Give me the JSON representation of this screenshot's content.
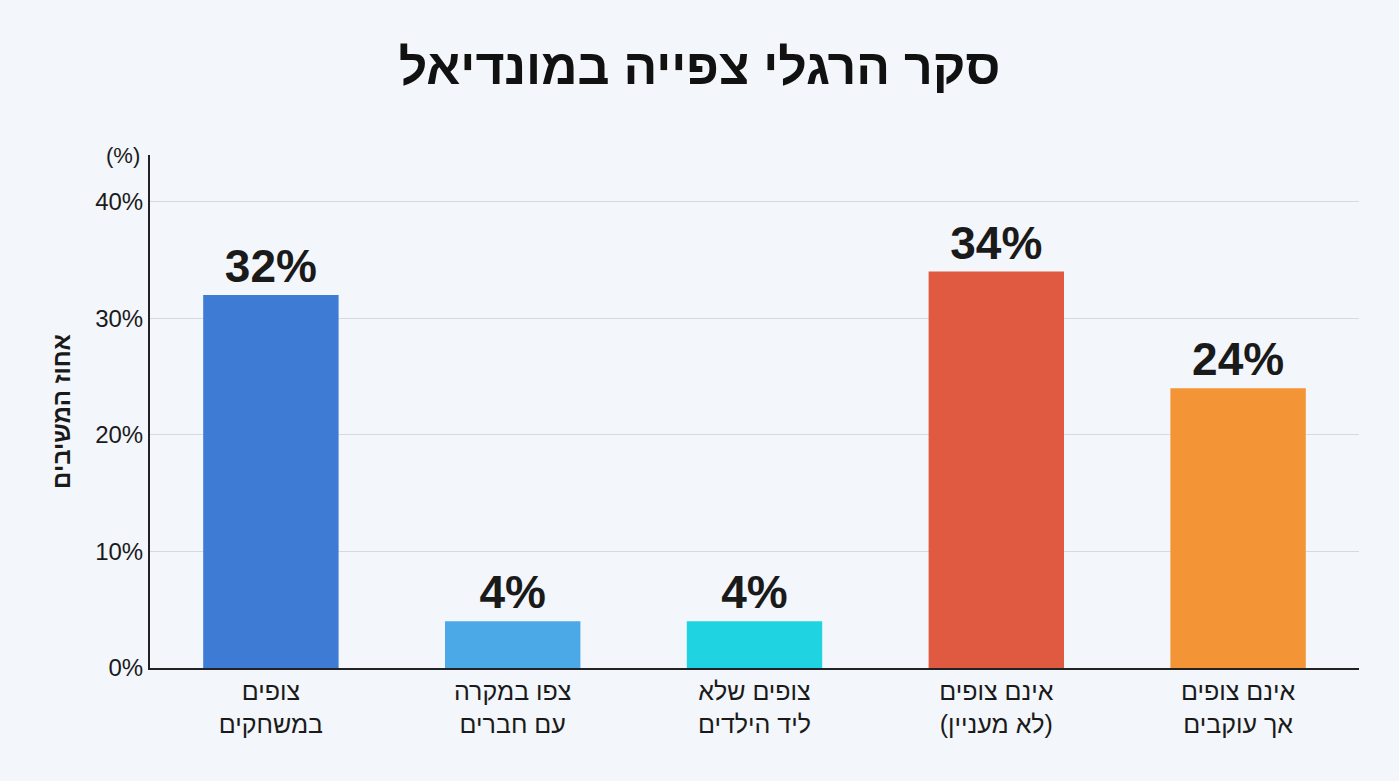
{
  "chart_data": {
    "type": "bar",
    "title": "סקר הרגלי צפייה במונדיאל",
    "y_label": "אחוז המשיבים",
    "annotations": [
      "(%)"
    ],
    "categories": [
      "צופים במשחקים",
      "צפו במקרה עם חברים",
      "צופים שלא ליד הילדים",
      "אינם צופים (לא מעניין)",
      "אינם צופים אך עוקבים"
    ],
    "values": [
      32,
      4,
      4,
      34,
      24
    ],
    "value_labels": [
      "32%",
      "4%",
      "4%",
      "34%",
      "24%"
    ],
    "colors": [
      "#3d7bd4",
      "#4aa9e6",
      "#1fd3e0",
      "#e05a42",
      "#f39536"
    ],
    "ylim": [
      0,
      44
    ],
    "yticks": [
      {
        "value": 0,
        "label": "0%"
      },
      {
        "value": 10,
        "label": "10%"
      },
      {
        "value": 20,
        "label": "20%"
      },
      {
        "value": 30,
        "label": "30%"
      },
      {
        "value": 40,
        "label": "40%"
      }
    ],
    "grid": true,
    "data_labels": true
  }
}
